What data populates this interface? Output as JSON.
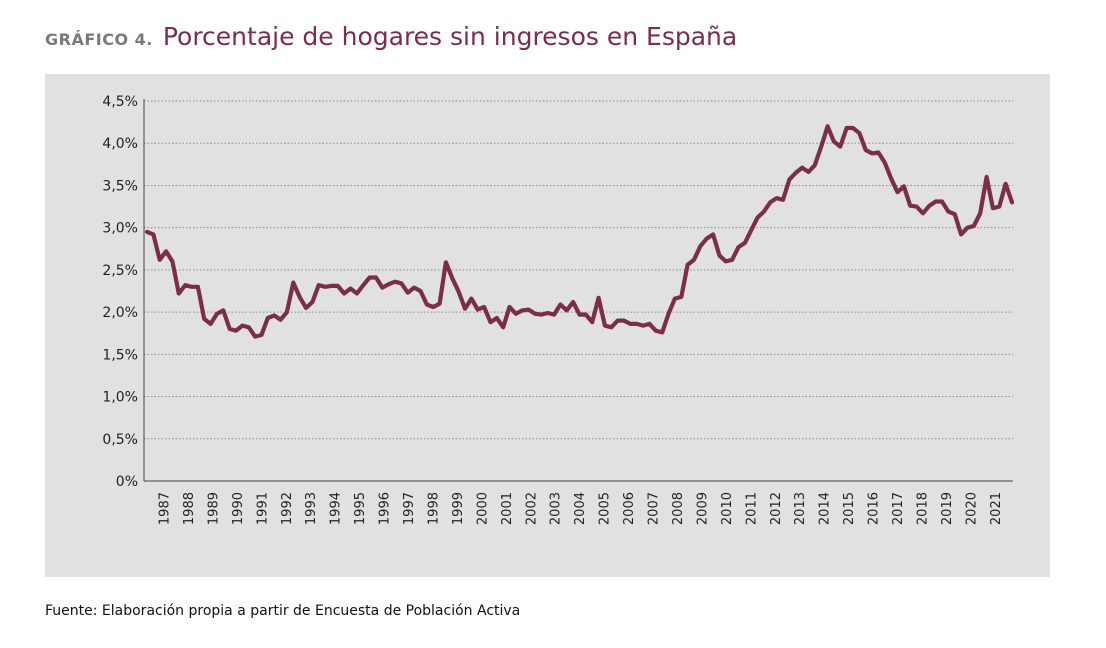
{
  "header": {
    "label": "GRÁFICO 4.",
    "title": "Porcentaje de hogares sin ingresos en España"
  },
  "source": "Fuente: Elaboración propia a partir de Encuesta de Población Activa",
  "colors": {
    "line": "#7b2d4b",
    "panel": "#e1e1e1",
    "grid": "#8c8c8c"
  },
  "chart_data": {
    "type": "line",
    "title": "Porcentaje de hogares sin ingresos en España",
    "xlabel": "",
    "ylabel": "",
    "ylim": [
      0,
      4.5
    ],
    "yticks": [
      0,
      0.5,
      1.0,
      1.5,
      2.0,
      2.5,
      3.0,
      3.5,
      4.0,
      4.5
    ],
    "ytick_labels": [
      "0%",
      "0,5%",
      "1,0%",
      "1,5%",
      "2,0%",
      "2,5%",
      "3,0%",
      "3,5%",
      "4,0%",
      "4,5%"
    ],
    "xticks": [
      "1987",
      "1988",
      "1989",
      "1990",
      "1991",
      "1992",
      "1993",
      "1994",
      "1995",
      "1996",
      "1997",
      "1998",
      "1999",
      "2000",
      "2001",
      "2002",
      "2003",
      "2004",
      "2005",
      "2006",
      "2007",
      "2008",
      "2009",
      "2010",
      "2011",
      "2012",
      "2013",
      "2014",
      "2015",
      "2016",
      "2017",
      "2018",
      "2019",
      "2020",
      "2021"
    ],
    "grid": true,
    "frequency": "quarterly",
    "start": "1987-Q2",
    "series": [
      {
        "values": [
          2.95,
          2.92,
          2.62,
          2.72,
          2.6,
          2.22,
          2.32,
          2.3,
          2.3,
          1.92,
          1.86,
          1.98,
          2.02,
          1.8,
          1.78,
          1.84,
          1.82,
          1.71,
          1.73,
          1.93,
          1.96,
          1.91,
          2.0,
          2.35,
          2.18,
          2.05,
          2.12,
          2.32,
          2.3,
          2.31,
          2.31,
          2.22,
          2.28,
          2.22,
          2.32,
          2.41,
          2.41,
          2.29,
          2.33,
          2.36,
          2.34,
          2.23,
          2.29,
          2.25,
          2.09,
          2.06,
          2.1,
          2.59,
          2.4,
          2.24,
          2.04,
          2.16,
          2.03,
          2.06,
          1.88,
          1.93,
          1.82,
          2.06,
          1.98,
          2.02,
          2.03,
          1.98,
          1.97,
          1.99,
          1.97,
          2.09,
          2.02,
          2.12,
          1.97,
          1.97,
          1.88,
          2.17,
          1.84,
          1.82,
          1.9,
          1.9,
          1.86,
          1.86,
          1.84,
          1.86,
          1.78,
          1.76,
          1.98,
          2.16,
          2.18,
          2.56,
          2.62,
          2.78,
          2.87,
          2.92,
          2.67,
          2.6,
          2.62,
          2.77,
          2.82,
          2.97,
          3.12,
          3.19,
          3.3,
          3.35,
          3.33,
          3.57,
          3.65,
          3.71,
          3.66,
          3.74,
          3.96,
          4.2,
          4.02,
          3.96,
          4.18,
          4.18,
          4.12,
          3.92,
          3.88,
          3.89,
          3.77,
          3.58,
          3.42,
          3.49,
          3.26,
          3.25,
          3.17,
          3.26,
          3.31,
          3.31,
          3.19,
          3.16,
          2.92,
          3.0,
          3.02,
          3.17,
          3.6,
          3.23,
          3.25,
          3.52,
          3.3
        ]
      }
    ]
  }
}
